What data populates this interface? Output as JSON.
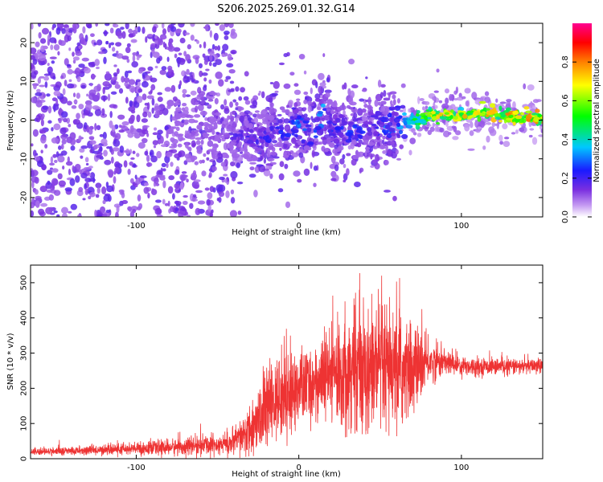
{
  "title": "S206.2025.269.01.32.G14",
  "chart_data": [
    {
      "type": "heatmap",
      "title": "S206.2025.269.01.32.G14",
      "xlabel": "Height of straight line (km)",
      "ylabel": "Frequency (Hz)",
      "xlim": [
        -165,
        150
      ],
      "ylim": [
        -25,
        25
      ],
      "xticks": [
        -100,
        0,
        100
      ],
      "yticks": [
        -20,
        -10,
        0,
        10,
        20
      ],
      "colorbar": {
        "label": "Normalized spectral amplitude",
        "range": [
          0,
          1
        ],
        "ticks": [
          0.0,
          0.2,
          0.4,
          0.6,
          0.8
        ],
        "colors": [
          "#ffffff",
          "#7a2fe0",
          "#1a1aff",
          "#00c8ff",
          "#00ff00",
          "#ffff00",
          "#ff8000",
          "#ff0000",
          "#ff0090"
        ]
      },
      "ridge": {
        "x": [
          -80,
          -60,
          -40,
          -20,
          -10,
          0,
          10,
          15,
          20,
          30,
          40,
          50,
          60,
          70,
          80,
          90,
          100,
          110,
          120,
          130,
          140,
          150
        ],
        "freq": [
          -2,
          -3,
          -4,
          -5,
          -3,
          -1,
          -3,
          2,
          -2,
          -3,
          -2,
          -2,
          -1,
          0,
          1,
          1.5,
          1,
          1.5,
          1.5,
          1,
          0.5,
          0.5
        ],
        "amplitude": [
          0.1,
          0.15,
          0.2,
          0.25,
          0.3,
          0.35,
          0.35,
          0.4,
          0.3,
          0.3,
          0.3,
          0.3,
          0.35,
          0.5,
          0.7,
          0.8,
          0.75,
          0.85,
          0.8,
          0.85,
          0.85,
          0.85
        ]
      }
    },
    {
      "type": "line",
      "xlabel": "Height of straight line (km)",
      "ylabel": "SNR (10 * v/v)",
      "xlim": [
        -165,
        150
      ],
      "ylim": [
        0,
        550
      ],
      "xticks": [
        -100,
        0,
        100
      ],
      "yticks": [
        0,
        100,
        200,
        300,
        400,
        500
      ],
      "series": [
        {
          "name": "SNR",
          "color": "#ee3333",
          "x": [
            -165,
            -140,
            -120,
            -100,
            -80,
            -60,
            -40,
            -30,
            -20,
            -10,
            0,
            10,
            20,
            30,
            40,
            50,
            60,
            70,
            80,
            90,
            100,
            110,
            120,
            130,
            140,
            150
          ],
          "mean": [
            20,
            22,
            25,
            28,
            32,
            38,
            45,
            80,
            140,
            180,
            200,
            215,
            235,
            255,
            260,
            250,
            240,
            255,
            275,
            275,
            265,
            262,
            262,
            262,
            262,
            265
          ],
          "spread": [
            8,
            10,
            12,
            15,
            18,
            22,
            30,
            60,
            90,
            100,
            90,
            85,
            120,
            140,
            150,
            160,
            140,
            110,
            50,
            30,
            25,
            20,
            18,
            18,
            18,
            18
          ]
        }
      ]
    }
  ]
}
